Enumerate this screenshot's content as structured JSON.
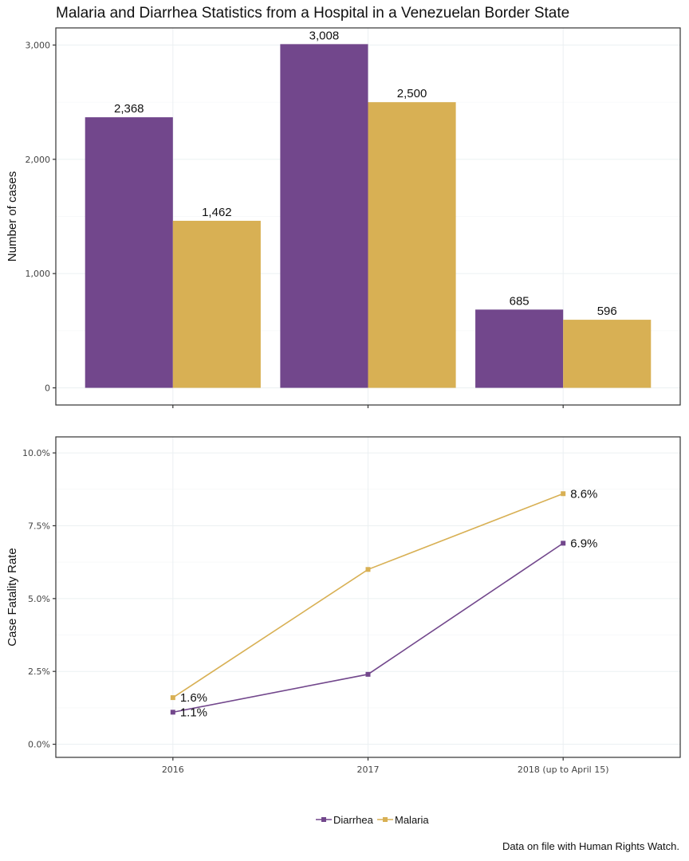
{
  "chart_data": [
    {
      "type": "bar",
      "title": "Malaria and Diarrhea Statistics from a Hospital in a Venezuelan Border State",
      "xlabel": "",
      "ylabel": "Number of cases",
      "categories": [
        "2016",
        "2017",
        "2018 (up to April 15)"
      ],
      "series": [
        {
          "name": "Diarrhea",
          "color": "#72478c",
          "values": [
            2368,
            3008,
            685
          ],
          "labels": [
            "2,368",
            "3,008",
            "685"
          ]
        },
        {
          "name": "Malaria",
          "color": "#d8b054",
          "values": [
            1462,
            2500,
            596
          ],
          "labels": [
            "1,462",
            "2,500",
            "596"
          ]
        }
      ],
      "ylim": [
        -150,
        3150
      ],
      "yticks": [
        0,
        1000,
        2000,
        3000
      ],
      "ytick_labels": [
        "0",
        "1,000",
        "2,000",
        "3,000"
      ],
      "grid": true
    },
    {
      "type": "line",
      "xlabel": "",
      "ylabel": "Case Fatality Rate",
      "categories": [
        "2016",
        "2017",
        "2018 (up to April 15)"
      ],
      "series": [
        {
          "name": "Diarrhea",
          "color": "#72478c",
          "values": [
            1.1,
            2.4,
            6.9
          ],
          "labels": [
            "1.1%",
            null,
            "6.9%"
          ]
        },
        {
          "name": "Malaria",
          "color": "#d8b054",
          "values": [
            1.6,
            6.0,
            8.6
          ],
          "labels": [
            "1.6%",
            null,
            "8.6%"
          ]
        }
      ],
      "ylim": [
        -0.45,
        10.55
      ],
      "yticks": [
        0,
        2.5,
        5.0,
        7.5,
        10.0
      ],
      "ytick_labels": [
        "0.0%",
        "2.5%",
        "5.0%",
        "7.5%",
        "10.0%"
      ],
      "grid": true,
      "legend": "bottom-center"
    }
  ],
  "legend": {
    "items": [
      {
        "label": "Diarrhea",
        "color": "#72478c"
      },
      {
        "label": "Malaria",
        "color": "#d8b054"
      }
    ]
  },
  "caption": "Data on file with Human Rights Watch."
}
